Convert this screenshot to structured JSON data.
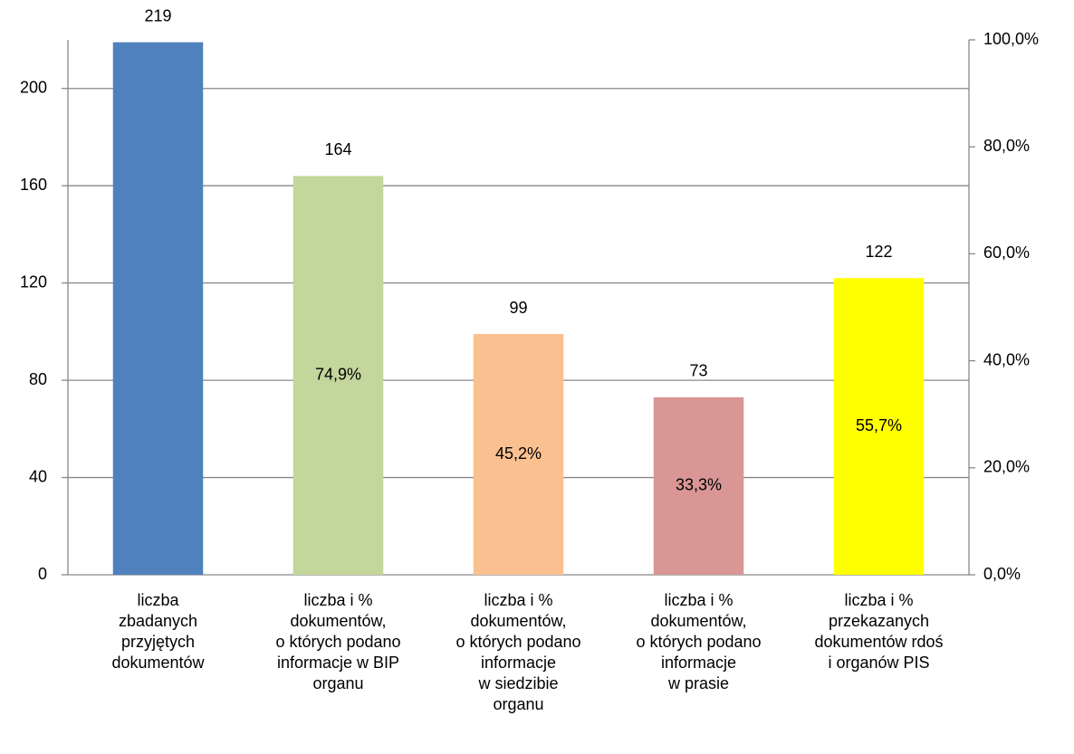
{
  "chart_data": {
    "type": "bar",
    "categories": [
      "liczba\nzbadanych\nprzyjętych\ndokumentów",
      "liczba i %\ndokumentów,\no których podano\ninformacje w BIP\norganu",
      "liczba i %\ndokumentów,\no których podano\ninformacje\nw siedzibie\norganu",
      "liczba i %\ndokumentów,\no których podano\ninformacje\nw prasie",
      "liczba i %\nprzekazanych\ndokumentów rdoś\ni organów PIS"
    ],
    "series": [
      {
        "values": [
          219,
          164,
          99,
          73,
          122
        ],
        "colors": [
          "#4f81bd",
          "#c3d69b",
          "#fac090",
          "#d99694",
          "#ffff00"
        ]
      },
      {
        "axis": "y2",
        "values": [
          null,
          74.9,
          45.2,
          33.3,
          55.7
        ],
        "value_labels": [
          null,
          "74,9%",
          "45,2%",
          "33,3%",
          "55,7%"
        ]
      }
    ],
    "ylim": [
      0,
      220
    ],
    "yticks": [
      0,
      40,
      80,
      120,
      160,
      200
    ],
    "y2lim": [
      0,
      100
    ],
    "y2ticks": [
      {
        "value": 0,
        "label": "0,0%"
      },
      {
        "value": 20,
        "label": "20,0%"
      },
      {
        "value": 40,
        "label": "40,0%"
      },
      {
        "value": 60,
        "label": "60,0%"
      },
      {
        "value": 80,
        "label": "80,0%"
      },
      {
        "value": 100,
        "label": "100,0%"
      }
    ],
    "grid": true
  }
}
